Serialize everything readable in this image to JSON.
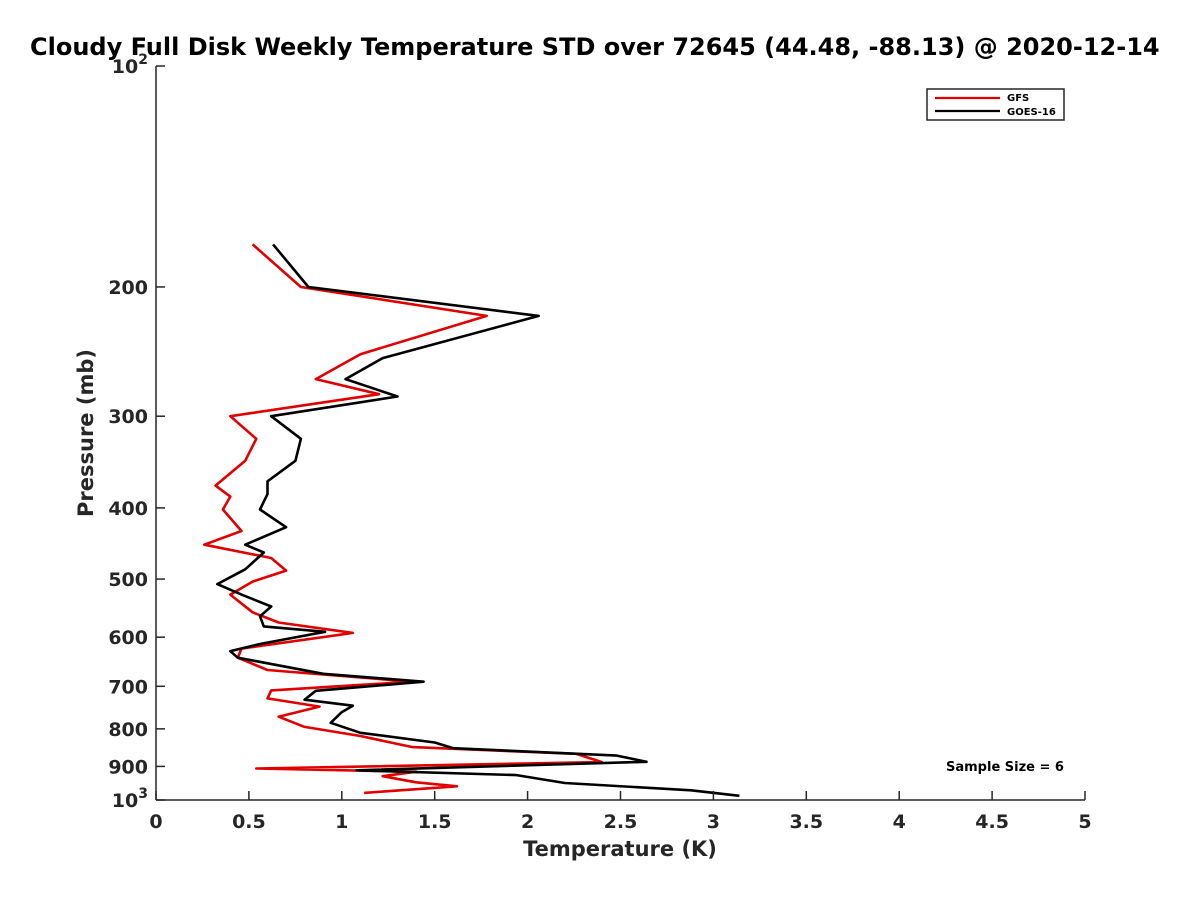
{
  "chart_data": {
    "type": "line",
    "title": "Cloudy Full Disk Weekly Temperature STD over 72645 (44.48, -88.13) @ 2020-12-14",
    "xlabel": "Temperature (K)",
    "ylabel": "Pressure (mb)",
    "xlim": [
      0,
      5
    ],
    "ylim": [
      100,
      1000
    ],
    "yscale": "log",
    "y_reversed": true,
    "x_ticks": [
      "0",
      "0.5",
      "1",
      "1.5",
      "2",
      "2.5",
      "3",
      "3.5",
      "4",
      "4.5",
      "5"
    ],
    "y_ticks": [
      {
        "value": 100,
        "base": "10",
        "exp": "2"
      },
      {
        "value": 200,
        "label": "200"
      },
      {
        "value": 300,
        "label": "300"
      },
      {
        "value": 400,
        "label": "400"
      },
      {
        "value": 500,
        "label": "500"
      },
      {
        "value": 600,
        "label": "600"
      },
      {
        "value": 700,
        "label": "700"
      },
      {
        "value": 800,
        "label": "800"
      },
      {
        "value": 900,
        "label": "900"
      },
      {
        "value": 1000,
        "base": "10",
        "exp": "3"
      }
    ],
    "legend_position": "top-right",
    "annotation": "Sample Size = 6",
    "series": [
      {
        "name": "GFS",
        "color": "#e00000",
        "points": [
          [
            0.52,
            175
          ],
          [
            0.78,
            200
          ],
          [
            1.78,
            219
          ],
          [
            1.1,
            247
          ],
          [
            0.86,
            267
          ],
          [
            1.2,
            280
          ],
          [
            0.4,
            300
          ],
          [
            0.54,
            322
          ],
          [
            0.48,
            345
          ],
          [
            0.32,
            373
          ],
          [
            0.4,
            386
          ],
          [
            0.36,
            402
          ],
          [
            0.46,
            430
          ],
          [
            0.26,
            449
          ],
          [
            0.62,
            468
          ],
          [
            0.7,
            487
          ],
          [
            0.52,
            504
          ],
          [
            0.4,
            525
          ],
          [
            0.52,
            555
          ],
          [
            0.66,
            573
          ],
          [
            1.06,
            592
          ],
          [
            0.46,
            622
          ],
          [
            0.44,
            640
          ],
          [
            0.6,
            665
          ],
          [
            1.38,
            690
          ],
          [
            0.62,
            709
          ],
          [
            0.6,
            727
          ],
          [
            0.88,
            746
          ],
          [
            0.66,
            770
          ],
          [
            0.8,
            795
          ],
          [
            1.1,
            818
          ],
          [
            1.38,
            847
          ],
          [
            2.26,
            865
          ],
          [
            2.4,
            888
          ],
          [
            0.54,
            906
          ],
          [
            1.4,
            915
          ],
          [
            1.22,
            928
          ],
          [
            1.4,
            946
          ],
          [
            1.62,
            958
          ],
          [
            1.12,
            978
          ]
        ]
      },
      {
        "name": "GOES-16",
        "color": "#000000",
        "points": [
          [
            0.63,
            175
          ],
          [
            0.82,
            200
          ],
          [
            2.06,
            219
          ],
          [
            1.22,
            250
          ],
          [
            1.02,
            267
          ],
          [
            1.3,
            282
          ],
          [
            0.62,
            300
          ],
          [
            0.78,
            322
          ],
          [
            0.75,
            345
          ],
          [
            0.6,
            368
          ],
          [
            0.6,
            383
          ],
          [
            0.56,
            402
          ],
          [
            0.7,
            425
          ],
          [
            0.48,
            449
          ],
          [
            0.58,
            460
          ],
          [
            0.48,
            485
          ],
          [
            0.33,
            508
          ],
          [
            0.46,
            525
          ],
          [
            0.62,
            545
          ],
          [
            0.56,
            562
          ],
          [
            0.58,
            580
          ],
          [
            0.91,
            590
          ],
          [
            0.56,
            613
          ],
          [
            0.4,
            627
          ],
          [
            0.44,
            640
          ],
          [
            0.9,
            673
          ],
          [
            1.44,
            690
          ],
          [
            0.86,
            710
          ],
          [
            0.8,
            730
          ],
          [
            1.06,
            744
          ],
          [
            1.0,
            759
          ],
          [
            0.94,
            785
          ],
          [
            1.1,
            810
          ],
          [
            1.5,
            835
          ],
          [
            1.6,
            850
          ],
          [
            2.48,
            870
          ],
          [
            2.64,
            887
          ],
          [
            1.08,
            911
          ],
          [
            1.94,
            925
          ],
          [
            2.2,
            948
          ],
          [
            2.88,
            970
          ],
          [
            3.14,
            987
          ]
        ]
      }
    ]
  }
}
